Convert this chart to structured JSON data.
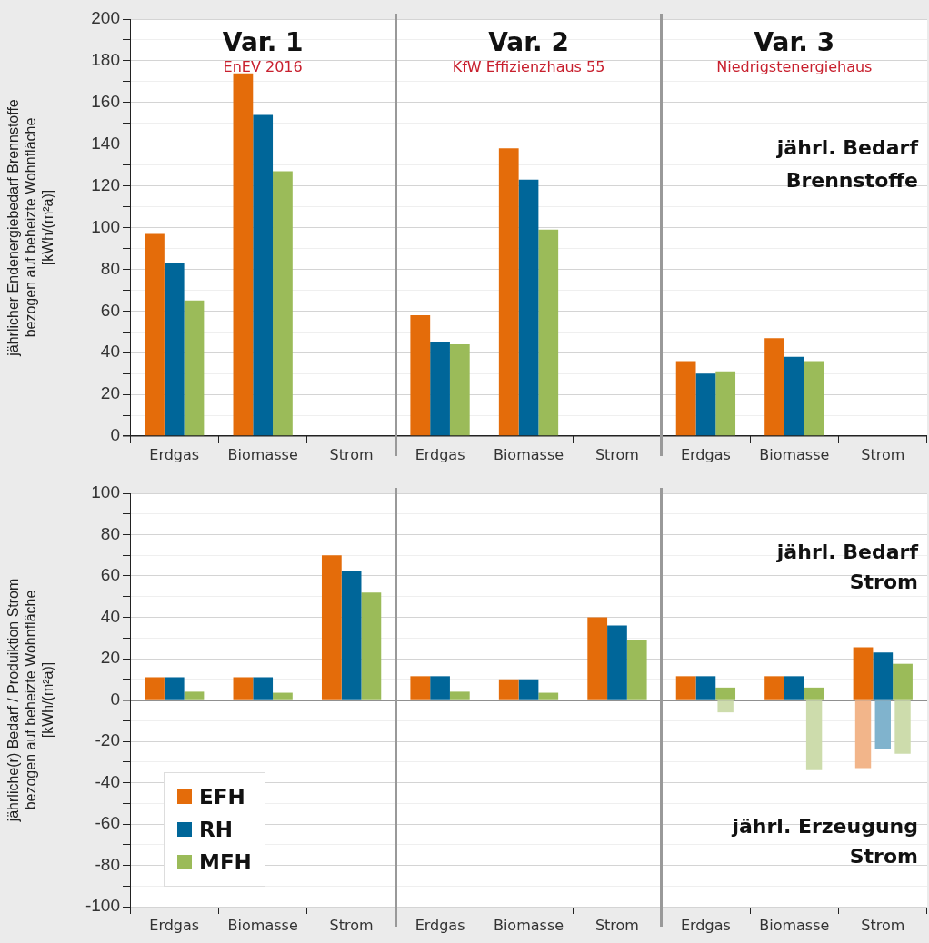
{
  "chart_data": [
    {
      "type": "bar",
      "ylabel": "jährlicher Endenergiebedarf Brennstoffe\nbezogen auf beheizte Wohnfläche\n[kWh/(m²a)]",
      "categories": [
        "Erdgas",
        "Biomasse",
        "Strom",
        "Erdgas",
        "Biomasse",
        "Strom",
        "Erdgas",
        "Biomasse",
        "Strom"
      ],
      "series": [
        {
          "color": "#e46c0a",
          "values": [
            97,
            174,
            null,
            58,
            138,
            null,
            36,
            47,
            null
          ]
        },
        {
          "color": "#006699",
          "values": [
            83,
            154,
            null,
            45,
            123,
            null,
            30,
            38,
            null
          ]
        },
        {
          "color": "#9bbb59",
          "values": [
            65,
            127,
            null,
            44,
            99,
            null,
            31,
            36,
            null
          ]
        }
      ],
      "ylim": [
        0,
        200
      ],
      "yticks": [
        0,
        {
          "value": 10,
          "label": null
        },
        20,
        {
          "value": 30,
          "label": null
        },
        40,
        {
          "value": 50,
          "label": null
        },
        60,
        {
          "value": 70,
          "label": null
        },
        80,
        {
          "value": 90,
          "label": null
        },
        100,
        {
          "value": 110,
          "label": null
        },
        120,
        {
          "value": 130,
          "label": null
        },
        140,
        {
          "value": 150,
          "label": null
        },
        160,
        {
          "value": 170,
          "label": null
        },
        180,
        {
          "value": 190,
          "label": null
        },
        200
      ],
      "grid": "y",
      "annotations": [
        "Var. 1",
        "EnEV 2016",
        "Var. 2",
        "KfW Effizienzhaus 55",
        "Var. 3",
        "Niedrigstenergiehaus",
        "jährl. Bedarf\nBrennstoffe"
      ]
    },
    {
      "type": "bar",
      "ylabel": "jährliche(r) Bedarf / Produiktion Strom\nbezogen auf beheizte Wohnfläche\n[kWh/(m²a)]",
      "categories": [
        "Erdgas",
        "Biomasse",
        "Strom",
        "Erdgas",
        "Biomasse",
        "Strom",
        "Erdgas",
        "Biomasse",
        "Strom"
      ],
      "series": [
        {
          "name": "EFH",
          "color": "#e46c0a",
          "values": [
            11,
            11,
            70,
            11.5,
            10,
            40,
            11.5,
            11.5,
            25.5
          ]
        },
        {
          "name": "RH",
          "color": "#006699",
          "values": [
            11,
            11,
            62.5,
            11.5,
            10,
            36,
            11.5,
            11.5,
            23
          ]
        },
        {
          "name": "MFH",
          "color": "#9bbb59",
          "values": [
            4,
            3.5,
            52,
            4,
            3.5,
            29,
            6,
            6,
            17.5
          ]
        },
        {
          "color": "#f2b58a",
          "values": [
            null,
            null,
            null,
            null,
            null,
            null,
            null,
            null,
            -33
          ]
        },
        {
          "color": "#80b3cd",
          "values": [
            null,
            null,
            null,
            null,
            null,
            null,
            null,
            null,
            -23.5
          ]
        },
        {
          "color": "#cddcac",
          "values": [
            null,
            null,
            null,
            null,
            null,
            null,
            -6,
            -34,
            -26
          ]
        }
      ],
      "ylim": [
        -100,
        100
      ],
      "yticks": [
        -100,
        {
          "value": -90,
          "label": null
        },
        -80,
        {
          "value": -70,
          "label": null
        },
        -60,
        {
          "value": -50,
          "label": null
        },
        -40,
        {
          "value": -30,
          "label": null
        },
        -20,
        {
          "value": -10,
          "label": null
        },
        0,
        {
          "value": 10,
          "label": null
        },
        20,
        {
          "value": 30,
          "label": null
        },
        40,
        {
          "value": 50,
          "label": null
        },
        60,
        {
          "value": 70,
          "label": null
        },
        80,
        {
          "value": 90,
          "label": null
        },
        100
      ],
      "grid": "y",
      "legend": "bottom left",
      "annotations": [
        "jährl. Bedarf\nStrom",
        "jährl. Erzeugung\nStrom"
      ]
    }
  ]
}
